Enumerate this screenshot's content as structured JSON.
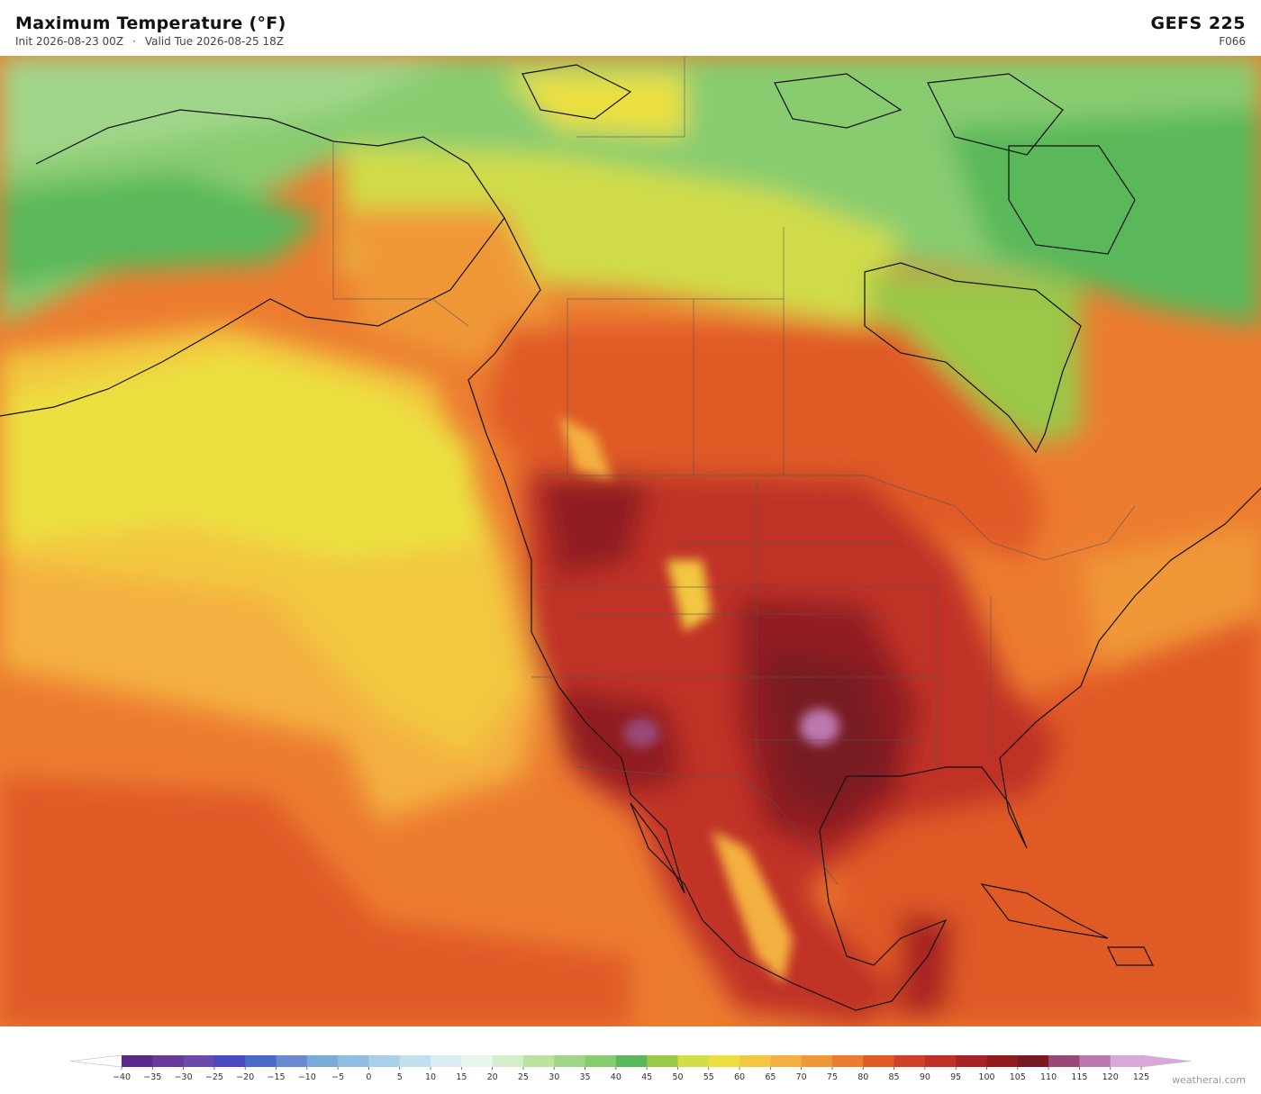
{
  "header": {
    "title": "Maximum Temperature  (°F)",
    "init": "Init 2026-08-23 00Z",
    "separator": "·",
    "valid": "Valid Tue 2026-08-25 18Z",
    "model": "GEFS  225",
    "forecast_hour": "F066"
  },
  "colorbar": {
    "ticks": [
      {
        "value": -40,
        "label": "−40"
      },
      {
        "value": -35,
        "label": "−35"
      },
      {
        "value": -30,
        "label": "−30"
      },
      {
        "value": -25,
        "label": "−25"
      },
      {
        "value": -20,
        "label": "−20"
      },
      {
        "value": -15,
        "label": "−15"
      },
      {
        "value": -10,
        "label": "−10"
      },
      {
        "value": -5,
        "label": "−5"
      },
      0,
      5,
      10,
      15,
      20,
      25,
      30,
      35,
      40,
      45,
      50,
      55,
      60,
      65,
      70,
      75,
      80,
      85,
      90,
      95,
      100,
      105,
      110,
      115,
      120,
      125
    ],
    "colors": [
      "#5a2a8a",
      "#6a3a9a",
      "#6a4aaa",
      "#4a4ac0",
      "#4a6ac8",
      "#6a8ad0",
      "#7aaad8",
      "#90bde0",
      "#a8d0e8",
      "#c0e0ee",
      "#d8eef2",
      "#e8f5ea",
      "#d4eecc",
      "#bce2a0",
      "#a0d68a",
      "#88cc70",
      "#5ab85a",
      "#9ac848",
      "#d0dc48",
      "#ece040",
      "#f2c840",
      "#f4b040",
      "#f09838",
      "#ec7c30",
      "#e05a28",
      "#d04028",
      "#c03028",
      "#a82424",
      "#901c20",
      "#781a22",
      "#9a4878",
      "#be78b0",
      "#d8a8d8"
    ],
    "under_color": "#ffffff",
    "over_color": "#d8a8d8"
  },
  "credit": "weatherai.com"
}
